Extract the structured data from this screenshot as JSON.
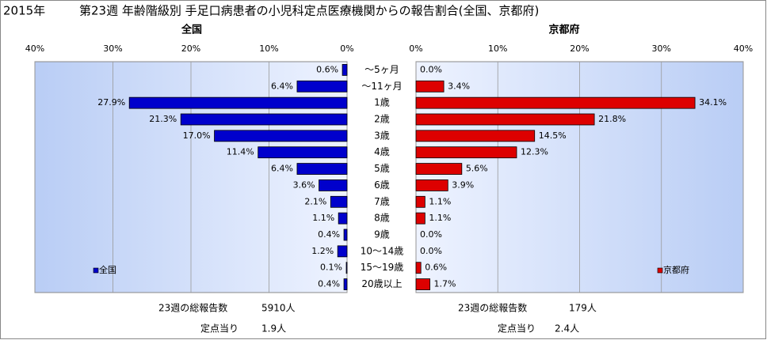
{
  "year_label": "2015年",
  "chart_data": {
    "type": "butterfly",
    "title": "第23週 年齢階級別 手足口病患者の小児科定点医療機関からの報告割合(全国、京都府)",
    "categories": [
      "～5ヶ月",
      "～11ヶ月",
      "1歳",
      "2歳",
      "3歳",
      "4歳",
      "5歳",
      "6歳",
      "7歳",
      "8歳",
      "9歳",
      "10～14歳",
      "15～19歳",
      "20歳以上"
    ],
    "xlim": [
      0,
      40
    ],
    "xticks": [
      {
        "value": 0,
        "label": "0%"
      },
      {
        "value": 10,
        "label": "10%"
      },
      {
        "value": 20,
        "label": "20%"
      },
      {
        "value": 30,
        "label": "30%"
      },
      {
        "value": 40,
        "label": "40%"
      }
    ],
    "grid": true,
    "series": [
      {
        "name": "全国",
        "color": "#0000cc",
        "values": [
          0.6,
          6.4,
          27.9,
          21.3,
          17.0,
          11.4,
          6.4,
          3.6,
          2.1,
          1.1,
          0.4,
          1.2,
          0.1,
          0.4
        ],
        "value_labels": [
          "0.6%",
          "6.4%",
          "27.9%",
          "21.3%",
          "17.0%",
          "11.4%",
          "6.4%",
          "3.6%",
          "2.1%",
          "1.1%",
          "0.4%",
          "1.2%",
          "0.1%",
          "0.4%"
        ],
        "summary": [
          [
            "23週の総報告数",
            "5910人"
          ],
          [
            "定点当り",
            "1.9人"
          ]
        ]
      },
      {
        "name": "京都府",
        "color": "#dd0000",
        "values": [
          0.0,
          3.4,
          34.1,
          21.8,
          14.5,
          12.3,
          5.6,
          3.9,
          1.1,
          1.1,
          0.0,
          0.0,
          0.6,
          1.7
        ],
        "value_labels": [
          "0.0%",
          "3.4%",
          "34.1%",
          "21.8%",
          "14.5%",
          "12.3%",
          "5.6%",
          "3.9%",
          "1.1%",
          "1.1%",
          "0.0%",
          "0.0%",
          "0.6%",
          "1.7%"
        ],
        "summary": [
          [
            "23週の総報告数",
            "179人"
          ],
          [
            "定点当り",
            "2.4人"
          ]
        ]
      }
    ]
  }
}
